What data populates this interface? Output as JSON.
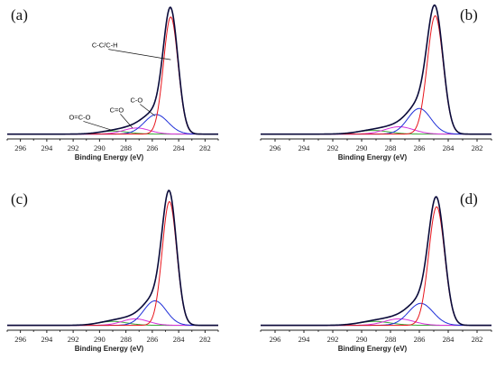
{
  "chart_data": [
    {
      "type": "line",
      "panel_label": "(a)",
      "xlabel": "Binding Energy (eV)",
      "ylabel": "",
      "xlim": [
        297,
        281
      ],
      "x_reversed": true,
      "ylim": [
        0,
        1.05
      ],
      "x_ticks": [
        296,
        294,
        292,
        290,
        288,
        286,
        284,
        282
      ],
      "label_position": "top-left",
      "annotations": [
        {
          "text": "C-C/C-H",
          "x": 289.6,
          "y": 0.72,
          "arrow_to": [
            284.6,
            0.62
          ]
        },
        {
          "text": "C-O",
          "x": 287.2,
          "y": 0.27,
          "arrow_to": [
            285.8,
            0.16
          ]
        },
        {
          "text": "C=O",
          "x": 288.7,
          "y": 0.19,
          "arrow_to": [
            287.5,
            0.06
          ]
        },
        {
          "text": "O=C-O",
          "x": 291.5,
          "y": 0.13,
          "arrow_to": [
            289.0,
            0.04
          ]
        }
      ],
      "baseline": 0.01,
      "peaks": [
        {
          "name": "C-C/C-H",
          "center": 284.6,
          "height": 0.96,
          "width": 0.55,
          "color": "#e8141b"
        },
        {
          "name": "C-O",
          "center": 285.7,
          "height": 0.16,
          "width": 0.9,
          "color": "#1f2fd8"
        },
        {
          "name": "C=O",
          "center": 287.2,
          "height": 0.05,
          "width": 1.0,
          "color": "#d72fd8"
        },
        {
          "name": "O=C-O",
          "center": 288.9,
          "height": 0.025,
          "width": 1.1,
          "color": "#3aa63a"
        }
      ]
    },
    {
      "type": "line",
      "panel_label": "(b)",
      "xlabel": "Binding Energy (eV)",
      "ylabel": "",
      "xlim": [
        297,
        281
      ],
      "x_reversed": true,
      "ylim": [
        0,
        1.05
      ],
      "x_ticks": [
        296,
        294,
        292,
        290,
        288,
        286,
        284,
        282
      ],
      "label_position": "top-right",
      "annotations": [],
      "baseline": 0.01,
      "peaks": [
        {
          "name": "C-C/C-H",
          "center": 284.9,
          "height": 0.97,
          "width": 0.55,
          "color": "#e8141b"
        },
        {
          "name": "C-O",
          "center": 286.0,
          "height": 0.21,
          "width": 0.8,
          "color": "#1f2fd8"
        },
        {
          "name": "C=O",
          "center": 287.4,
          "height": 0.06,
          "width": 1.0,
          "color": "#d72fd8"
        },
        {
          "name": "O=C-O",
          "center": 289.2,
          "height": 0.03,
          "width": 1.1,
          "color": "#3aa63a"
        }
      ]
    },
    {
      "type": "line",
      "panel_label": "(c)",
      "xlabel": "Binding Energy (eV)",
      "ylabel": "",
      "xlim": [
        297,
        281
      ],
      "x_reversed": true,
      "ylim": [
        0,
        1.05
      ],
      "x_ticks": [
        296,
        294,
        292,
        290,
        288,
        286,
        284,
        282
      ],
      "label_position": "top-left",
      "annotations": [],
      "baseline": 0.01,
      "peaks": [
        {
          "name": "C-C/C-H",
          "center": 284.7,
          "height": 0.96,
          "width": 0.55,
          "color": "#e8141b"
        },
        {
          "name": "C-O",
          "center": 285.8,
          "height": 0.19,
          "width": 0.85,
          "color": "#1f2fd8"
        },
        {
          "name": "C=O",
          "center": 287.3,
          "height": 0.05,
          "width": 1.0,
          "color": "#d72fd8"
        },
        {
          "name": "O=C-O",
          "center": 289.0,
          "height": 0.03,
          "width": 1.1,
          "color": "#3aa63a"
        }
      ]
    },
    {
      "type": "line",
      "panel_label": "(d)",
      "xlabel": "Binding Energy (eV)",
      "ylabel": "",
      "xlim": [
        297,
        281
      ],
      "x_reversed": true,
      "ylim": [
        0,
        1.05
      ],
      "x_ticks": [
        296,
        294,
        292,
        290,
        288,
        286,
        284,
        282
      ],
      "label_position": "top-right",
      "annotations": [],
      "baseline": 0.01,
      "peaks": [
        {
          "name": "C-C/C-H",
          "center": 284.8,
          "height": 0.92,
          "width": 0.55,
          "color": "#e8141b"
        },
        {
          "name": "C-O",
          "center": 285.9,
          "height": 0.17,
          "width": 0.85,
          "color": "#1f2fd8"
        },
        {
          "name": "C=O",
          "center": 287.4,
          "height": 0.05,
          "width": 1.0,
          "color": "#d72fd8"
        },
        {
          "name": "O=C-O",
          "center": 289.1,
          "height": 0.03,
          "width": 1.1,
          "color": "#3aa63a"
        }
      ]
    }
  ],
  "colors": {
    "envelope": "#0a0a3a",
    "axis": "#222222"
  }
}
